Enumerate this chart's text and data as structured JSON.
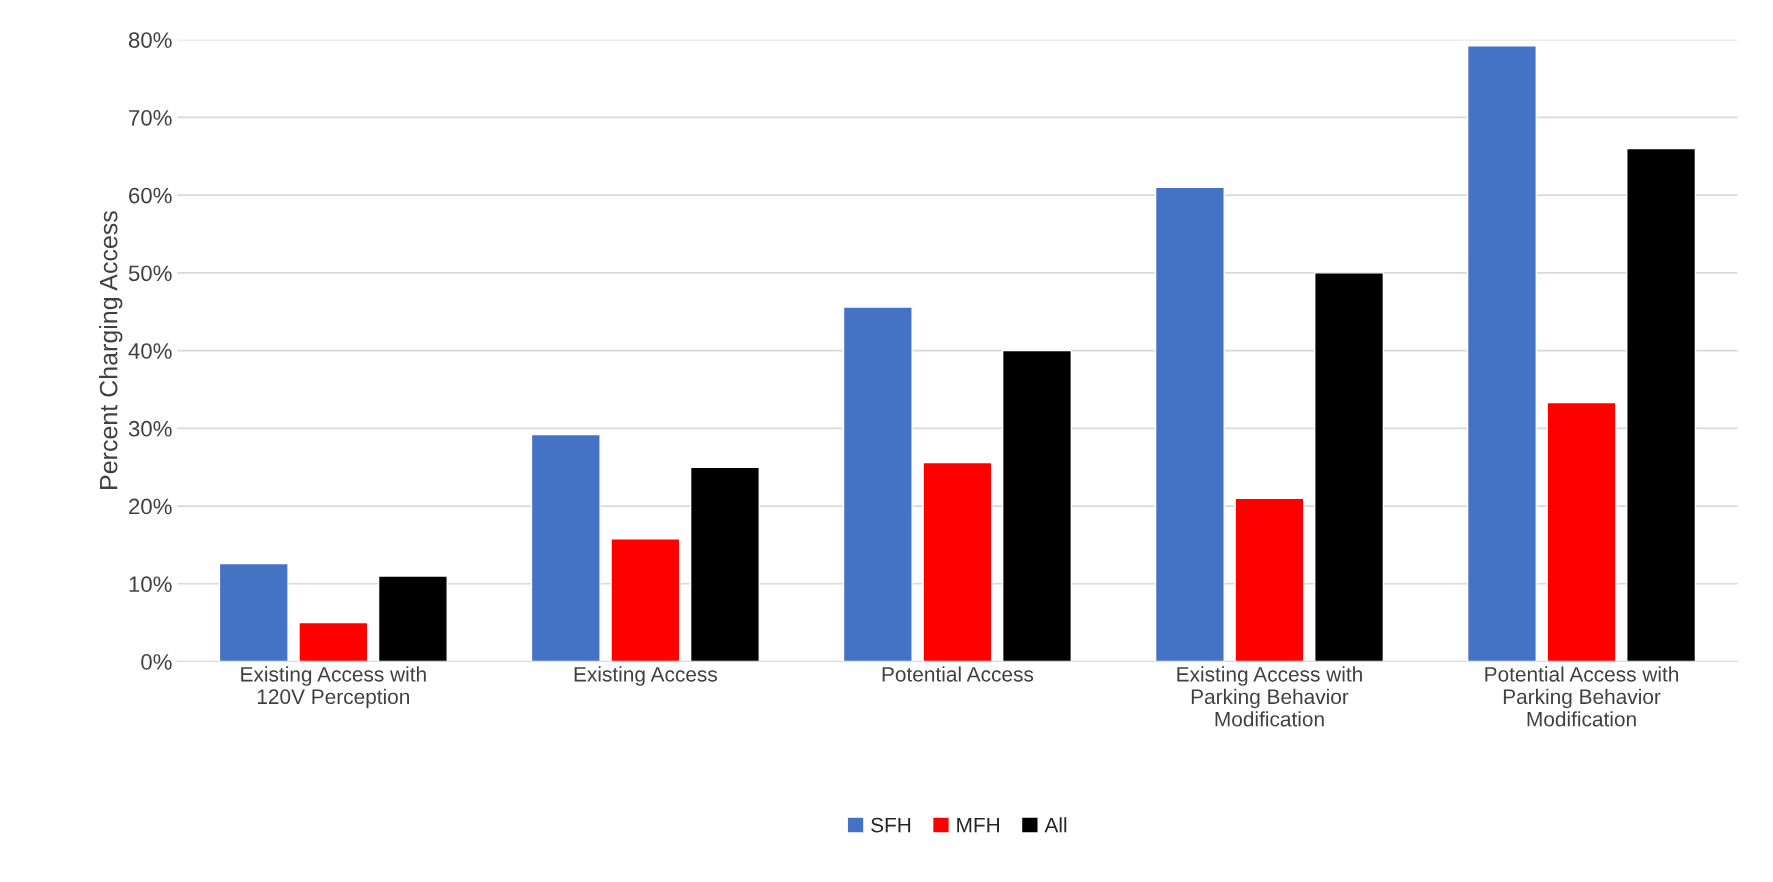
{
  "chart_data": {
    "type": "bar",
    "ylabel": "Percent Charging Access",
    "categories": [
      "Existing Access with\n120V Perception",
      "Existing Access",
      "Potential Access",
      "Existing Access with\nParking Behavior\nModification",
      "Potential Access with\nParking Behavior\nModification"
    ],
    "series": [
      {
        "name": "SFH",
        "color": "#4472c4",
        "values": [
          12.6,
          29.2,
          45.6,
          61,
          79.2
        ]
      },
      {
        "name": "MFH",
        "color": "#ff0000",
        "values": [
          5,
          15.8,
          25.6,
          21,
          33.3
        ]
      },
      {
        "name": "All",
        "color": "#000000",
        "values": [
          11,
          25,
          40,
          50,
          66
        ]
      }
    ],
    "ylim": [
      0,
      80
    ],
    "yticks": [
      {
        "value": 0,
        "label": "0%"
      },
      {
        "value": 10,
        "label": "10%"
      },
      {
        "value": 20,
        "label": "20%"
      },
      {
        "value": 30,
        "label": "30%"
      },
      {
        "value": 40,
        "label": "40%"
      },
      {
        "value": 50,
        "label": "50%"
      },
      {
        "value": 60,
        "label": "60%"
      },
      {
        "value": 70,
        "label": "70%"
      },
      {
        "value": 80,
        "label": "80%"
      }
    ],
    "grid": "y",
    "legend": "bottom"
  }
}
